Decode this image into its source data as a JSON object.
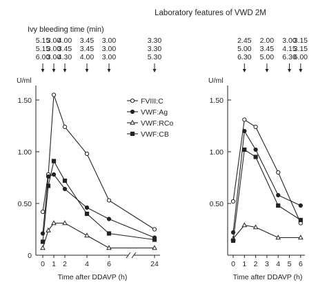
{
  "title": "Laboratory features of VWD 2M",
  "bleeding_label": "Ivy bleeding time (min)",
  "colors": {
    "ink": "#222222",
    "panel_fill": "#ffffff"
  },
  "chart_data": [
    {
      "type": "line",
      "panel": "left",
      "ylabel": "U/ml",
      "xlabel": "Time after DDAVP (h)",
      "ylim": [
        0,
        1.6
      ],
      "yticks": [
        0,
        0.5,
        1.0,
        1.5
      ],
      "ytick_labels": [
        "0",
        "0.50",
        "1.00",
        "1.50"
      ],
      "x_ticks": [
        0,
        1,
        2,
        4,
        6,
        24
      ],
      "x_ticks_labels": [
        "0",
        "1",
        "2",
        "4",
        "6",
        "24"
      ],
      "axis_break": "between 6 and 24",
      "legend_position": "right of peak",
      "bleeding_times": {
        "arrow_times": [
          0,
          1,
          2,
          4,
          6,
          24
        ],
        "rows": [
          [
            "5.15",
            "3.00",
            "4.00",
            "3.45",
            "3.00",
            "3.30"
          ],
          [
            "5.15",
            "3.00",
            "3.45",
            "3.45",
            "3.00",
            "3.30"
          ],
          [
            "6.00",
            "3.00",
            "4.30",
            "4.00",
            "3.00",
            "5.30"
          ]
        ]
      },
      "series": [
        {
          "name": "FVIII:C",
          "marker": "open-circle",
          "x": [
            0,
            0.5,
            1,
            2,
            4,
            6,
            24
          ],
          "y": [
            0.42,
            0.78,
            1.55,
            1.24,
            0.98,
            0.53,
            0.25
          ]
        },
        {
          "name": "VWF:Ag",
          "marker": "filled-circle",
          "x": [
            0,
            0.5,
            1,
            2,
            4,
            6,
            24
          ],
          "y": [
            0.21,
            0.76,
            0.78,
            0.64,
            0.46,
            0.35,
            0.17
          ]
        },
        {
          "name": "VWF:RCo",
          "marker": "open-triangle",
          "x": [
            0,
            0.5,
            1,
            2,
            4,
            6,
            24
          ],
          "y": [
            0.07,
            0.24,
            0.31,
            0.31,
            0.19,
            0.07,
            0.07
          ]
        },
        {
          "name": "VWF:CB",
          "marker": "filled-square",
          "x": [
            0,
            0.5,
            1,
            2,
            4,
            6,
            24
          ],
          "y": [
            0.13,
            0.67,
            0.91,
            0.72,
            0.4,
            0.21,
            0.15
          ]
        }
      ]
    },
    {
      "type": "line",
      "panel": "right",
      "ylabel": "U/ml",
      "xlabel": "Time after DDAVP (h)",
      "ylim": [
        0,
        1.6
      ],
      "yticks": [
        0.5,
        1.0,
        1.5
      ],
      "ytick_labels": [
        "0.50",
        "1.00",
        "1.50"
      ],
      "x_ticks": [
        0,
        1,
        2,
        3,
        4,
        5,
        6
      ],
      "x_ticks_labels": [
        "0",
        "1",
        "2",
        "3",
        "4",
        "5",
        "6"
      ],
      "bleeding_times": {
        "arrow_times": [
          1,
          3,
          5,
          6
        ],
        "rows": [
          [
            "2.45",
            "2.00",
            "3.00",
            "3.15"
          ],
          [
            "5.00",
            "3.45",
            "4.15",
            "3.15"
          ],
          [
            "6.30",
            "5.00",
            "6.30",
            "6.00"
          ]
        ]
      },
      "series": [
        {
          "name": "FVIII:C",
          "marker": "open-circle",
          "x": [
            0,
            1,
            2,
            4,
            6
          ],
          "y": [
            0.52,
            1.31,
            1.24,
            0.8,
            0.31
          ]
        },
        {
          "name": "VWF:Ag",
          "marker": "filled-circle",
          "x": [
            0,
            1,
            2,
            4,
            6
          ],
          "y": [
            0.22,
            1.2,
            1.02,
            0.58,
            0.48
          ]
        },
        {
          "name": "VWF:RCo",
          "marker": "open-triangle",
          "x": [
            0,
            1,
            2,
            4,
            6
          ],
          "y": [
            0.16,
            0.29,
            0.27,
            0.17,
            0.17
          ]
        },
        {
          "name": "VWF:CB",
          "marker": "filled-square",
          "x": [
            0,
            1,
            2,
            4,
            6
          ],
          "y": [
            0.14,
            1.02,
            0.95,
            0.48,
            0.34
          ]
        }
      ]
    }
  ]
}
